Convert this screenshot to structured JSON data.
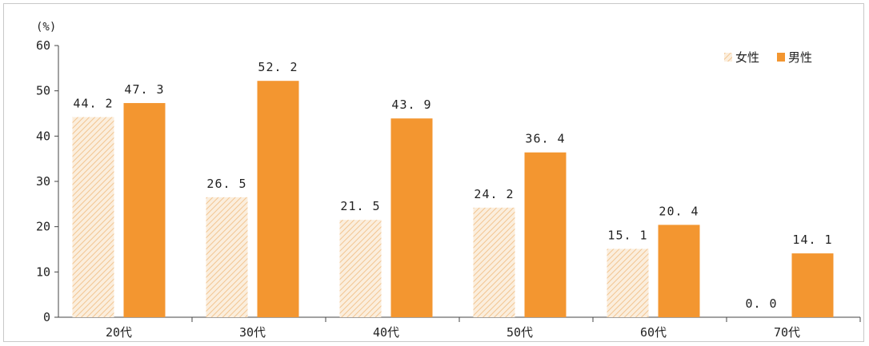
{
  "chart_data": {
    "type": "bar",
    "unit": "(%)",
    "categories": [
      "20代",
      "30代",
      "40代",
      "50代",
      "60代",
      "70代"
    ],
    "series": [
      {
        "name": "女性",
        "values": [
          44.2,
          26.5,
          21.5,
          24.2,
          15.1,
          0.0
        ],
        "labels": [
          "44. 2",
          "26. 5",
          "21. 5",
          "24. 2",
          "15. 1",
          "0. 0"
        ],
        "color": "#f7d9b4",
        "pattern": "diagonal-hatch"
      },
      {
        "name": "男性",
        "values": [
          47.3,
          52.2,
          43.9,
          36.4,
          20.4,
          14.1
        ],
        "labels": [
          "47. 3",
          "52. 2",
          "43. 9",
          "36. 4",
          "20. 4",
          "14. 1"
        ],
        "color": "#f39630"
      }
    ],
    "ylim": [
      0,
      60
    ],
    "yticks": [
      0,
      10,
      20,
      30,
      40,
      50,
      60
    ],
    "legend_position": "top-right",
    "grid": false
  }
}
